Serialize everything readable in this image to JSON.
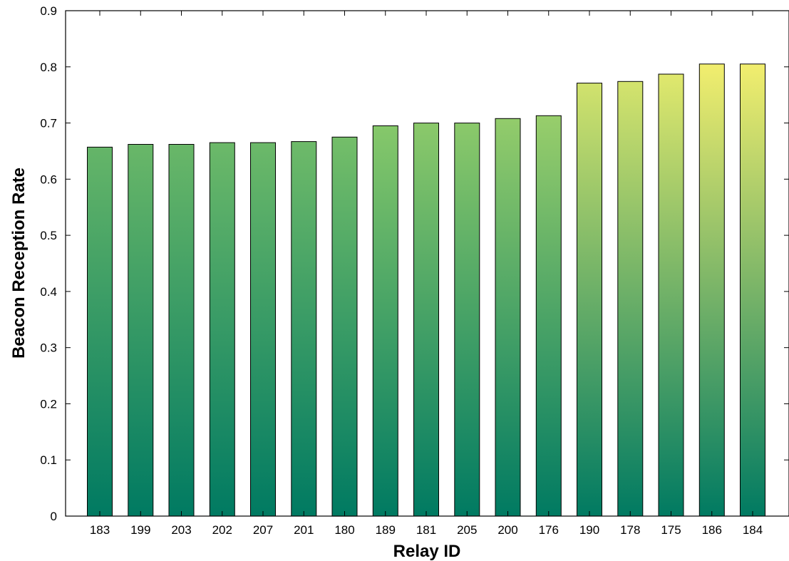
{
  "chart_data": {
    "type": "bar",
    "title": "",
    "xlabel": "Relay ID",
    "ylabel": "Beacon Reception Rate",
    "categories": [
      "183",
      "199",
      "203",
      "202",
      "207",
      "201",
      "180",
      "189",
      "181",
      "205",
      "200",
      "176",
      "190",
      "178",
      "175",
      "186",
      "184"
    ],
    "values": [
      0.657,
      0.662,
      0.662,
      0.665,
      0.665,
      0.667,
      0.675,
      0.695,
      0.7,
      0.7,
      0.708,
      0.713,
      0.771,
      0.774,
      0.787,
      0.805,
      0.805
    ],
    "ylim": [
      0,
      0.9
    ],
    "yticks": [
      "0",
      "0.1",
      "0.2",
      "0.3",
      "0.4",
      "0.5",
      "0.6",
      "0.7",
      "0.8",
      "0.9"
    ],
    "grid": false,
    "legend": "none",
    "colormap": {
      "low": "#007a62",
      "mid": "#84c76a",
      "high": "#f7f06e"
    }
  }
}
